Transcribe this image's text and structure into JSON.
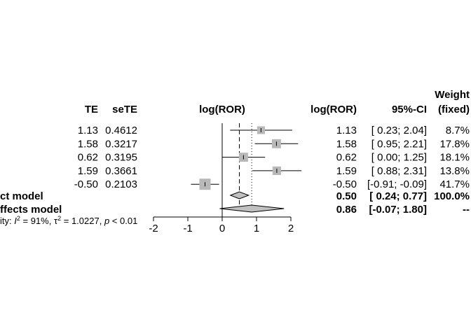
{
  "chart_data": {
    "type": "forest",
    "headers": {
      "te": "TE",
      "sete": "seTE",
      "plot": "log(ROR)",
      "effect": "log(ROR)",
      "ci": "95%-CI",
      "weight_line1": "Weight",
      "weight_line2": "(fixed)"
    },
    "studies": [
      {
        "te": "1.13",
        "sete": "0.4612",
        "est": 1.13,
        "lo": 0.23,
        "hi": 2.04,
        "effect": "1.13",
        "ci": "[ 0.23;  2.04]",
        "weight": "8.7%",
        "w": 8.7
      },
      {
        "te": "1.58",
        "sete": "0.3217",
        "est": 1.58,
        "lo": 0.95,
        "hi": 2.21,
        "effect": "1.58",
        "ci": "[ 0.95;  2.21]",
        "weight": "17.8%",
        "w": 17.8
      },
      {
        "te": "0.62",
        "sete": "0.3195",
        "est": 0.62,
        "lo": 0.0,
        "hi": 1.25,
        "effect": "0.62",
        "ci": "[ 0.00;  1.25]",
        "weight": "18.1%",
        "w": 18.1
      },
      {
        "te": "1.59",
        "sete": "0.3661",
        "est": 1.59,
        "lo": 0.88,
        "hi": 2.31,
        "effect": "1.59",
        "ci": "[ 0.88;  2.31]",
        "weight": "13.8%",
        "w": 13.8
      },
      {
        "te": "-0.50",
        "sete": "0.2103",
        "est": -0.5,
        "lo": -0.91,
        "hi": -0.09,
        "effect": "-0.50",
        "ci": "[-0.91; -0.09]",
        "weight": "41.7%",
        "w": 41.7
      }
    ],
    "fixed": {
      "label": "ct model",
      "est": 0.5,
      "lo": 0.24,
      "hi": 0.77,
      "effect": "0.50",
      "ci": "[ 0.24;  0.77]",
      "weight": "100.0%"
    },
    "random": {
      "label": "ffects model",
      "est": 0.86,
      "lo": -0.07,
      "hi": 1.8,
      "effect": "0.86",
      "ci": "[-0.07;  1.80]",
      "weight": "--"
    },
    "heterogeneity": {
      "prefix": "ity: ",
      "i2": "91%",
      "tau2": "1.0227",
      "p": "0.01"
    },
    "xlim": [
      -2,
      2.4
    ],
    "xticks": [
      -2,
      -1,
      0,
      1,
      2
    ],
    "reference_lines": {
      "null": 0,
      "fixed": 0.5,
      "random": 0.86
    }
  }
}
